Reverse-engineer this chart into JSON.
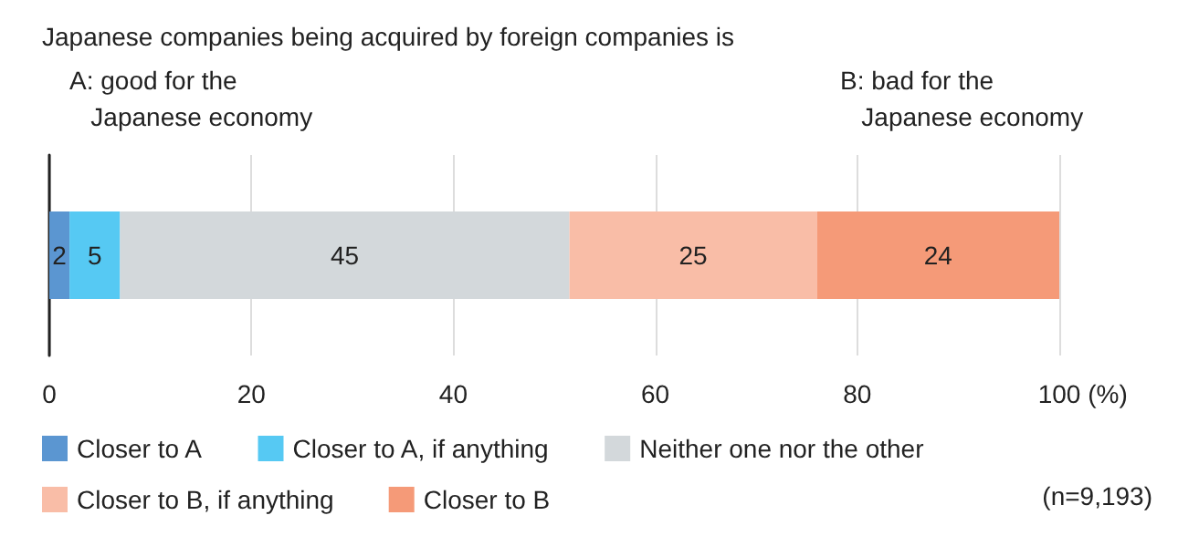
{
  "chart_data": {
    "type": "bar",
    "title": "Japanese companies being acquired by foreign companies is",
    "orientation": "horizontal",
    "stacked": true,
    "categories": [
      null
    ],
    "series": [
      {
        "name": "Closer to A",
        "color": "#5b96d1",
        "values": [
          2
        ],
        "value_labels": [
          "2"
        ]
      },
      {
        "name": "Closer to A, if anything",
        "color": "#56c9f3",
        "values": [
          5.0
        ],
        "value_labels": [
          "5"
        ]
      },
      {
        "name": "Neither one nor the other",
        "color": "#d3d8db",
        "values": [
          44.5
        ],
        "value_labels": [
          "45"
        ]
      },
      {
        "name": "Closer to B, if anything",
        "color": "#f9bda7",
        "values": [
          24.5
        ],
        "value_labels": [
          "25"
        ]
      },
      {
        "name": "Closer to B",
        "color": "#f59a78",
        "values": [
          24.0
        ],
        "value_labels": [
          "24"
        ]
      }
    ],
    "xlim": [
      0,
      100
    ],
    "xticks": [
      0,
      20,
      40,
      60,
      80,
      100
    ],
    "xlabel": "(%)",
    "grid": "x",
    "legend": "bottom",
    "annotations": [
      "A: good for the\nJapanese economy",
      "B: bad for the\nJapanese economy",
      "(n=9,193)"
    ]
  }
}
